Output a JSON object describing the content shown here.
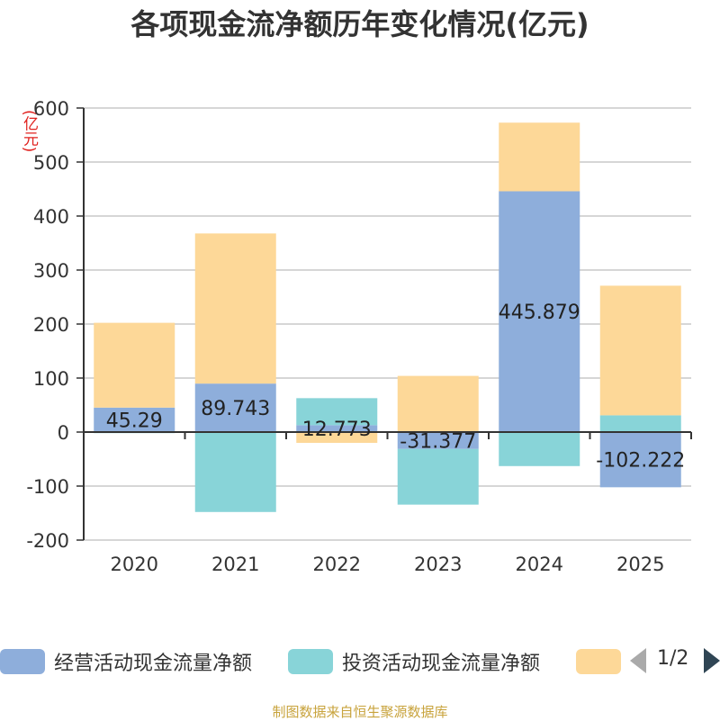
{
  "chart_data": {
    "type": "bar",
    "stacked": true,
    "title": "各项现金流净额历年变化情况(亿元)",
    "ylabel": "(亿元)",
    "categories": [
      "2020",
      "2021",
      "2022",
      "2023",
      "2024",
      "2025"
    ],
    "ylim": [
      -200,
      600
    ],
    "yticks": [
      600,
      500,
      400,
      300,
      200,
      100,
      0,
      -100,
      -200
    ],
    "series": [
      {
        "name": "经营活动现金流量净额",
        "color": "#8eaedb",
        "values": [
          45.29,
          89.743,
          12.773,
          -31.377,
          445.879,
          -102.222
        ],
        "labels": [
          "45.29",
          "89.743",
          "12.773",
          "-31.377",
          "445.879",
          "-102.222"
        ]
      },
      {
        "name": "投资活动现金流量净额",
        "color": "#88d4d8",
        "values": [
          -2,
          -148,
          50,
          -103,
          -63,
          31
        ]
      },
      {
        "name": "",
        "color": "#fdd898",
        "values": [
          157,
          278,
          -20,
          104,
          127,
          240
        ]
      }
    ]
  },
  "legend": {
    "items": [
      "经营活动现金流量净额",
      "投资活动现金流量净额",
      ""
    ],
    "page": "1/2"
  },
  "source": "制图数据来自恒生聚源数据库"
}
